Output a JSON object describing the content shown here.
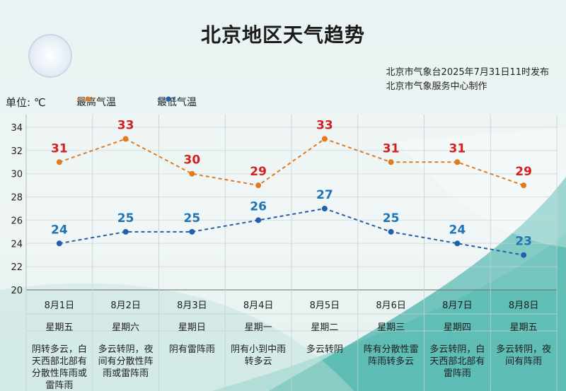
{
  "title": "北京地区天气趋势",
  "publisher": {
    "line1": "北京市气象台2025年7月31日11时发布",
    "line2": "北京市气象服务中心制作"
  },
  "unit_label": "单位: ℃",
  "legend": {
    "max_label": "最高气温",
    "min_label": "最低气温"
  },
  "colors": {
    "max": "#e07b22",
    "min": "#2360a8",
    "max_label": "#d62020",
    "min_label": "#1f74b8"
  },
  "chart_data": {
    "type": "line",
    "categories": [
      "8月1日",
      "8月2日",
      "8月3日",
      "8月4日",
      "8月5日",
      "8月6日",
      "8月7日",
      "8月8日"
    ],
    "weekdays": [
      "星期五",
      "星期六",
      "星期日",
      "星期一",
      "星期二",
      "星期三",
      "星期四",
      "星期五"
    ],
    "conditions": [
      "阴转多云，白天西部北部有分散性阵雨或雷阵雨",
      "多云转阴，夜间有分散性阵雨或雷阵雨",
      "阴有雷阵雨",
      "阴有小到中雨转多云",
      "多云转阴",
      "阵有分散性雷阵雨转多云",
      "多云转阴，白天西部北部有雷阵雨",
      "多云转阴，夜间有阵雨"
    ],
    "series": [
      {
        "name": "最高气温",
        "values": [
          31,
          33,
          30,
          29,
          33,
          31,
          31,
          29
        ]
      },
      {
        "name": "最低气温",
        "values": [
          24,
          25,
          25,
          26,
          27,
          25,
          24,
          23
        ]
      }
    ],
    "ylim": [
      20,
      34
    ],
    "yticks": [
      20,
      22,
      24,
      26,
      28,
      30,
      32,
      34
    ],
    "grid": true,
    "legend_position": "top-left"
  }
}
